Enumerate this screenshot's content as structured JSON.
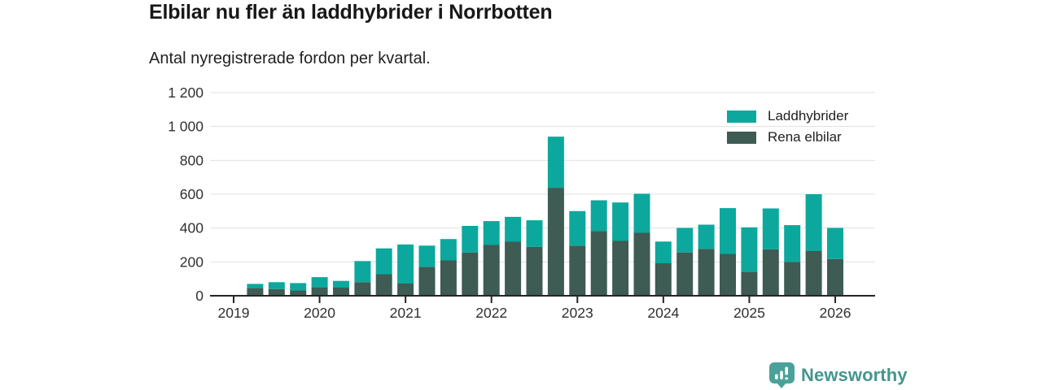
{
  "header": {
    "title": "Elbilar nu fler än laddhybrider i Norrbotten",
    "subtitle": "Antal nyregistrerade fordon per kvartal."
  },
  "colors": {
    "laddhybrider": "#0ca89d",
    "rena_elbilar": "#3e5b54",
    "grid": "#e0e0e0",
    "axis": "#262626",
    "tick_text": "#303030",
    "logo_icon": "#4aa19a",
    "logo_text": "#45968e"
  },
  "legend": {
    "items": [
      {
        "label": "Laddhybrider",
        "color_key": "laddhybrider"
      },
      {
        "label": "Rena elbilar",
        "color_key": "rena_elbilar"
      }
    ]
  },
  "footer": {
    "brand": "Newsworthy"
  },
  "chart_data": {
    "type": "bar",
    "stacked": true,
    "title": "Elbilar nu fler än laddhybrider i Norrbotten",
    "subtitle": "Antal nyregistrerade fordon per kvartal.",
    "categories": [
      "2019 Q2",
      "2019 Q3",
      "2019 Q4",
      "2020 Q1",
      "2020 Q2",
      "2020 Q3",
      "2020 Q4",
      "2021 Q1",
      "2021 Q2",
      "2021 Q3",
      "2021 Q4",
      "2022 Q1",
      "2022 Q2",
      "2022 Q3",
      "2022 Q4",
      "2023 Q1",
      "2023 Q2",
      "2023 Q3",
      "2023 Q4",
      "2024 Q1",
      "2024 Q2",
      "2024 Q3",
      "2024 Q4",
      "2025 Q1",
      "2025 Q2",
      "2025 Q3",
      "2025 Q4",
      "2026 Q1"
    ],
    "series": [
      {
        "name": "Rena elbilar",
        "color_key": "rena_elbilar",
        "values": [
          45,
          40,
          32,
          50,
          50,
          80,
          127,
          72,
          170,
          209,
          255,
          300,
          319,
          289,
          638,
          296,
          383,
          324,
          372,
          192,
          256,
          277,
          247,
          141,
          274,
          200,
          264,
          217
        ]
      },
      {
        "name": "Laddhybrider",
        "color_key": "laddhybrider",
        "values": [
          25,
          40,
          43,
          60,
          38,
          125,
          153,
          231,
          126,
          126,
          158,
          141,
          147,
          157,
          302,
          204,
          181,
          227,
          231,
          128,
          145,
          143,
          271,
          263,
          242,
          217,
          336,
          184
        ]
      }
    ],
    "ylim": [
      0,
      1200
    ],
    "y_ticks": [
      0,
      200,
      400,
      600,
      800,
      1000,
      1200
    ],
    "y_tick_labels": [
      "0",
      "200",
      "400",
      "600",
      "800",
      "1 000",
      "1 200"
    ],
    "x_tick_years": [
      "2019",
      "2020",
      "2021",
      "2022",
      "2023",
      "2024",
      "2025",
      "2026"
    ],
    "grid": true,
    "legend_position": "top-right"
  }
}
